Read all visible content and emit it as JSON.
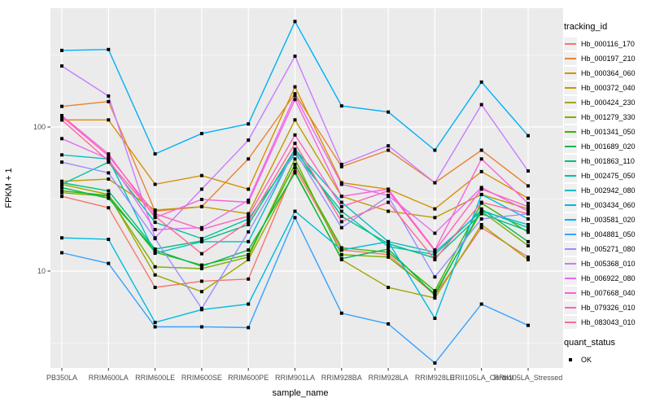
{
  "chart_data": {
    "type": "line",
    "title": "",
    "xlabel": "sample_name",
    "ylabel": "FPKM + 1",
    "y_scale": "log10",
    "ylim": [
      1.9,
      750
    ],
    "y_tick_values": [
      10,
      100
    ],
    "y_tick_labels": [
      "10",
      "100"
    ],
    "y_minor_tick_values": [
      3.162,
      31.62,
      316.2
    ],
    "grid": true,
    "legend_position": "right",
    "panel_background": "#EBEBEB",
    "grid_color": "#FFFFFF",
    "tick_text_color": "#4D4D4D",
    "marker": {
      "shape": "square",
      "color": "#000000",
      "size": 4
    },
    "categories": [
      "PB350LA",
      "RRIM600LA",
      "RRIM600LE",
      "RRIM600SE",
      "RRIM600PE",
      "RRIM901LA",
      "RRIM928BA",
      "RRIM928LA",
      "RRIM928LE",
      "RRII105LA_Control",
      "RRII105LA_Stressed"
    ],
    "legend_title": "tracking_id",
    "series": [
      {
        "name": "Hb_000116_170",
        "color": "#F8766D",
        "values": [
          33,
          27.5,
          7.7,
          8.5,
          8.8,
          52,
          14,
          13,
          6.8,
          20,
          12.5
        ]
      },
      {
        "name": "Hb_000197_210",
        "color": "#EA8331",
        "values": [
          139,
          150,
          26,
          28,
          60,
          170,
          53,
          69,
          41,
          69,
          39
        ]
      },
      {
        "name": "Hb_000364_060",
        "color": "#D89000",
        "values": [
          112,
          112,
          40,
          46,
          37,
          190,
          41,
          37,
          27,
          49,
          32
        ]
      },
      {
        "name": "Hb_000372_040",
        "color": "#C09B00",
        "values": [
          42,
          43.5,
          26.5,
          28,
          25,
          112,
          33,
          26,
          23.5,
          34,
          27
        ]
      },
      {
        "name": "Hb_000424_230",
        "color": "#A3A500",
        "values": [
          40,
          34,
          9.4,
          7.2,
          12,
          49,
          12,
          7.7,
          6.5,
          21,
          12
        ]
      },
      {
        "name": "Hb_001279_330",
        "color": "#7CAE00",
        "values": [
          35,
          33,
          10.7,
          10.4,
          12.5,
          60,
          13,
          12.5,
          7,
          26,
          15
        ]
      },
      {
        "name": "Hb_001341_050",
        "color": "#39B600",
        "values": [
          36,
          33.5,
          13.5,
          11,
          13,
          55,
          14.5,
          13.5,
          7.3,
          29.6,
          18.6
        ]
      },
      {
        "name": "Hb_001689_020",
        "color": "#00BB4E",
        "values": [
          38,
          32,
          14,
          10.8,
          14,
          48,
          12.2,
          14.2,
          6.8,
          27,
          16
        ]
      },
      {
        "name": "Hb_001863_110",
        "color": "#00BF7D",
        "values": [
          41,
          36,
          14.2,
          16.2,
          21,
          70,
          24,
          15.5,
          12.3,
          25,
          19
        ]
      },
      {
        "name": "Hb_002475_050",
        "color": "#00C1A3",
        "values": [
          40,
          57,
          21.8,
          16.8,
          23,
          65,
          26,
          14.8,
          13,
          26.5,
          20
        ]
      },
      {
        "name": "Hb_002942_080",
        "color": "#00BFC4",
        "values": [
          64,
          60,
          13.3,
          16,
          16,
          70,
          30,
          16,
          13.5,
          26,
          21
        ]
      },
      {
        "name": "Hb_003434_060",
        "color": "#00BAE0",
        "values": [
          17,
          16.6,
          4.4,
          5.4,
          5.9,
          26,
          14,
          16,
          4.7,
          34,
          23
        ]
      },
      {
        "name": "Hb_003581_020",
        "color": "#00B0F6",
        "values": [
          340,
          345,
          65,
          90,
          105,
          540,
          140,
          127,
          69,
          205,
          87
        ]
      },
      {
        "name": "Hb_004881_050",
        "color": "#35A2FF",
        "values": [
          13.4,
          11.3,
          4.1,
          4.1,
          4.05,
          23.5,
          5.1,
          4.3,
          2.3,
          5.9,
          4.2
        ]
      },
      {
        "name": "Hb_005271_080",
        "color": "#9590FF",
        "values": [
          57,
          48,
          16.8,
          5.5,
          18.7,
          68,
          20,
          33,
          9.1,
          23,
          25
        ]
      },
      {
        "name": "Hb_005368_010",
        "color": "#C77CFF",
        "values": [
          265,
          164,
          17,
          37,
          81,
          310,
          55,
          74,
          41,
          143,
          49.5
        ]
      },
      {
        "name": "Hb_006922_080",
        "color": "#E76BF3",
        "values": [
          83,
          60,
          19.4,
          20,
          31,
          165,
          40,
          33.5,
          18.3,
          38,
          26
        ]
      },
      {
        "name": "Hb_007668_040",
        "color": "#FA62DB",
        "values": [
          120,
          65,
          23.5,
          31.4,
          30,
          155,
          33,
          37,
          14,
          60,
          29.5
        ]
      },
      {
        "name": "Hb_079326_010",
        "color": "#FF62BC",
        "values": [
          118,
          63,
          25,
          19.5,
          24,
          88,
          28,
          36,
          13.8,
          37,
          28
        ]
      },
      {
        "name": "Hb_083043_010",
        "color": "#FF6A98",
        "values": [
          112,
          58,
          24,
          13.2,
          22,
          77,
          22,
          30,
          12,
          30,
          25
        ]
      }
    ],
    "quant_legend": {
      "title": "quant_status",
      "items": [
        {
          "label": "OK"
        }
      ]
    }
  }
}
